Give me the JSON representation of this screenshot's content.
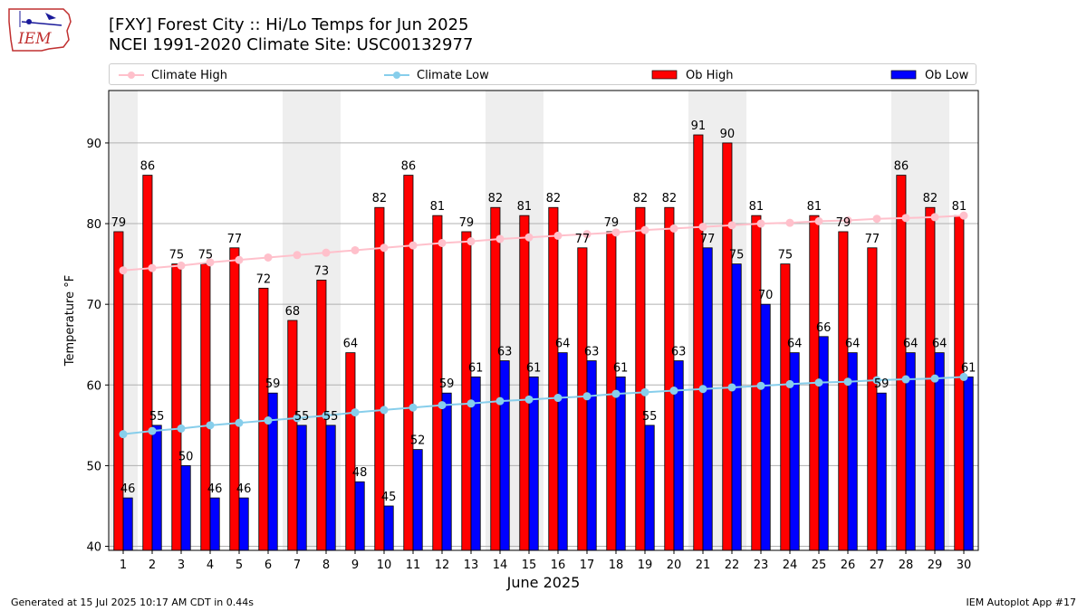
{
  "title": {
    "line1": "[FXY] Forest City :: Hi/Lo Temps for Jun 2025",
    "line2": "NCEI 1991-2020 Climate Site: USC00132977"
  },
  "logo": {
    "text": "IEM"
  },
  "legend": {
    "items": [
      {
        "label": "Climate High",
        "color": "#ffc0cb"
      },
      {
        "label": "Climate Low",
        "color": "#87ceeb"
      },
      {
        "label": "Ob High",
        "color": "#ff0000"
      },
      {
        "label": "Ob Low",
        "color": "#0000ff"
      }
    ]
  },
  "footer": {
    "left": "Generated at 15 Jul 2025 10:17 AM CDT in 0.44s",
    "right": "IEM Autoplot App #17"
  },
  "chart_data": {
    "type": "bar",
    "xlabel": "June 2025",
    "ylabel": "Temperature °F",
    "ylim": [
      39.5,
      96.5
    ],
    "yticks": [
      40,
      50,
      60,
      70,
      80,
      90
    ],
    "grid": "horizontal",
    "legend_position": "top",
    "categories": [
      1,
      2,
      3,
      4,
      5,
      6,
      7,
      8,
      9,
      10,
      11,
      12,
      13,
      14,
      15,
      16,
      17,
      18,
      19,
      20,
      21,
      22,
      23,
      24,
      25,
      26,
      27,
      28,
      29,
      30
    ],
    "weekend_shading_days": [
      1,
      7,
      8,
      14,
      15,
      21,
      22,
      28,
      29
    ],
    "series": [
      {
        "name": "Ob High",
        "kind": "bar",
        "color": "#ff0000",
        "values": [
          79,
          86,
          75,
          75,
          77,
          72,
          68,
          73,
          64,
          82,
          86,
          81,
          79,
          82,
          81,
          82,
          77,
          79,
          82,
          82,
          91,
          90,
          81,
          75,
          81,
          79,
          77,
          86,
          82,
          81
        ]
      },
      {
        "name": "Ob Low",
        "kind": "bar",
        "color": "#0000ff",
        "values": [
          46,
          55,
          50,
          46,
          46,
          59,
          55,
          55,
          48,
          45,
          52,
          59,
          61,
          63,
          61,
          64,
          63,
          61,
          55,
          63,
          77,
          75,
          70,
          64,
          66,
          64,
          59,
          64,
          64,
          61
        ]
      },
      {
        "name": "Climate High",
        "kind": "line",
        "color": "#ffc0cb",
        "values": [
          74.2,
          74.5,
          74.8,
          75.2,
          75.5,
          75.8,
          76.1,
          76.4,
          76.7,
          77.0,
          77.3,
          77.6,
          77.8,
          78.1,
          78.3,
          78.5,
          78.7,
          78.9,
          79.2,
          79.4,
          79.6,
          79.8,
          80.0,
          80.1,
          80.3,
          80.4,
          80.6,
          80.7,
          80.8,
          81.0
        ]
      },
      {
        "name": "Climate Low",
        "kind": "line",
        "color": "#87ceeb",
        "values": [
          53.9,
          54.3,
          54.6,
          55.0,
          55.3,
          55.6,
          55.9,
          56.2,
          56.6,
          56.9,
          57.2,
          57.5,
          57.7,
          58.0,
          58.2,
          58.4,
          58.6,
          58.9,
          59.1,
          59.3,
          59.5,
          59.7,
          59.9,
          60.1,
          60.3,
          60.4,
          60.6,
          60.7,
          60.8,
          61.0
        ]
      }
    ]
  }
}
